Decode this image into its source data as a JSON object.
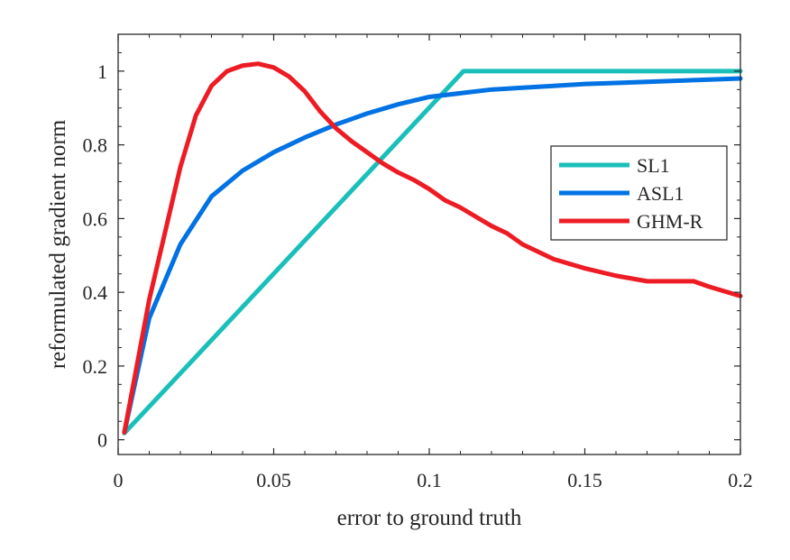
{
  "chart_data": {
    "type": "line",
    "title": "",
    "xlabel": "error to ground truth",
    "ylabel": "reformulated gradient norm",
    "xlim": [
      0,
      0.2
    ],
    "ylim": [
      -0.04,
      1.1
    ],
    "xticks": [
      0,
      0.05,
      0.1,
      0.15,
      0.2
    ],
    "xtick_labels": [
      "0",
      "0.05",
      "0.1",
      "0.15",
      "0.2"
    ],
    "yticks": [
      0,
      0.2,
      0.4,
      0.6,
      0.8,
      1
    ],
    "ytick_labels": [
      "0",
      "0.2",
      "0.4",
      "0.6",
      "0.8",
      "1"
    ],
    "grid": false,
    "legend_position": "right",
    "series": [
      {
        "name": "SL1",
        "color": "#1ABFB9",
        "x": [
          0.002,
          0.111,
          0.2
        ],
        "y": [
          0.018,
          1.0,
          1.0
        ]
      },
      {
        "name": "ASL1",
        "color": "#0072E3",
        "x": [
          0.002,
          0.01,
          0.02,
          0.03,
          0.04,
          0.05,
          0.06,
          0.07,
          0.08,
          0.09,
          0.1,
          0.11,
          0.12,
          0.13,
          0.14,
          0.15,
          0.16,
          0.17,
          0.18,
          0.19,
          0.2
        ],
        "y": [
          0.02,
          0.33,
          0.53,
          0.66,
          0.73,
          0.78,
          0.82,
          0.855,
          0.885,
          0.91,
          0.93,
          0.94,
          0.95,
          0.955,
          0.96,
          0.965,
          0.968,
          0.971,
          0.974,
          0.977,
          0.98
        ]
      },
      {
        "name": "GHM-R",
        "color": "#ED1C24",
        "x": [
          0.002,
          0.01,
          0.02,
          0.025,
          0.03,
          0.035,
          0.04,
          0.045,
          0.05,
          0.055,
          0.06,
          0.065,
          0.07,
          0.075,
          0.08,
          0.085,
          0.09,
          0.095,
          0.1,
          0.105,
          0.11,
          0.115,
          0.12,
          0.125,
          0.13,
          0.14,
          0.15,
          0.16,
          0.17,
          0.18,
          0.185,
          0.19,
          0.2
        ],
        "y": [
          0.02,
          0.38,
          0.74,
          0.88,
          0.96,
          1.0,
          1.015,
          1.02,
          1.01,
          0.985,
          0.945,
          0.89,
          0.845,
          0.81,
          0.78,
          0.75,
          0.725,
          0.705,
          0.68,
          0.65,
          0.63,
          0.605,
          0.58,
          0.56,
          0.53,
          0.49,
          0.465,
          0.445,
          0.43,
          0.43,
          0.43,
          0.415,
          0.39
        ]
      }
    ]
  }
}
